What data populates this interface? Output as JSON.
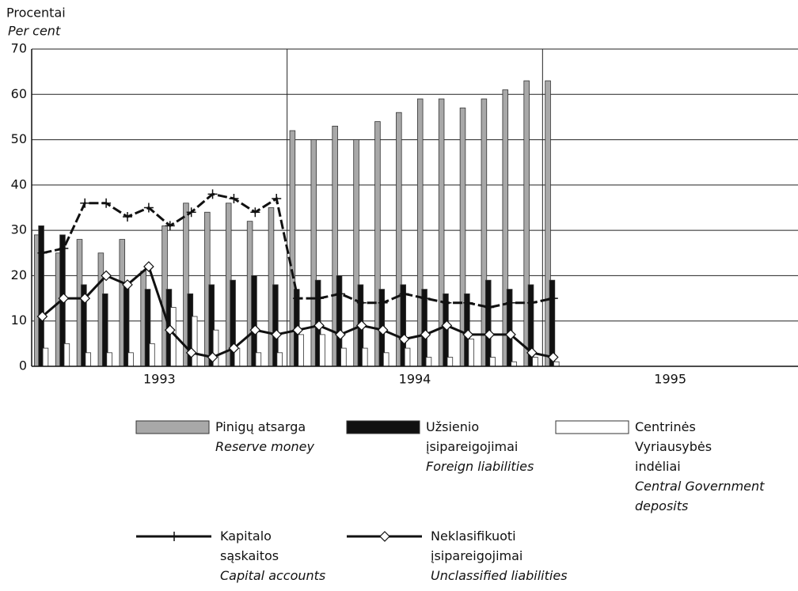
{
  "chart_data": {
    "type": "bar-line",
    "ylabel": "Procentai",
    "ylabel_en": "Per cent",
    "groups": [
      "1993",
      "1994",
      "1995"
    ],
    "categories": [
      null,
      null,
      null,
      null,
      null,
      null,
      null,
      null,
      null,
      null,
      null,
      null,
      null,
      null,
      null,
      null,
      null,
      null,
      null,
      null,
      null,
      null,
      null,
      null,
      null
    ],
    "ylim": [
      0,
      70
    ],
    "yticks": [
      0,
      10,
      20,
      30,
      40,
      50,
      60,
      70
    ],
    "grid": true,
    "series": [
      {
        "name": "Pinigų atsarga",
        "name_en": "Reserve money",
        "kind": "bar",
        "color": "#a8a8a8",
        "values": [
          29,
          25,
          28,
          25,
          28,
          21,
          31,
          36,
          34,
          36,
          32,
          35,
          52,
          50,
          53,
          50,
          54,
          56,
          59,
          59,
          57,
          59,
          61,
          63,
          63
        ]
      },
      {
        "name": "Užsienio įsipareigojimai",
        "name_en": "Foreign liabilities",
        "kind": "bar",
        "color": "#111111",
        "values": [
          31,
          29,
          18,
          16,
          18,
          17,
          17,
          16,
          18,
          19,
          20,
          18,
          17,
          19,
          20,
          18,
          17,
          18,
          17,
          16,
          16,
          19,
          17,
          18,
          19
        ]
      },
      {
        "name": "Centrinės Vyriausybės indėliai",
        "name_en": "Central Government deposits",
        "kind": "bar",
        "color": "#ffffff",
        "values": [
          4,
          5,
          3,
          3,
          3,
          5,
          13,
          11,
          8,
          4,
          3,
          3,
          7,
          7,
          4,
          4,
          3,
          4,
          2,
          2,
          6,
          2,
          1,
          2,
          1
        ]
      },
      {
        "name": "Kapitalo sąskaitos",
        "name_en": "Capital accounts",
        "kind": "line",
        "marker": "plus",
        "color": "#111111",
        "values": [
          25,
          26,
          36,
          36,
          33,
          35,
          31,
          34,
          38,
          37,
          34,
          37,
          15,
          15,
          16,
          14,
          14,
          16,
          15,
          14,
          14,
          13,
          14,
          14,
          15
        ]
      },
      {
        "name": "Neklasifikuoti įsipareigojimai",
        "name_en": "Unclassified liabilities",
        "kind": "line",
        "marker": "diamond",
        "color": "#111111",
        "values": [
          11,
          15,
          15,
          20,
          18,
          22,
          8,
          3,
          2,
          4,
          8,
          7,
          8,
          9,
          7,
          9,
          8,
          6,
          7,
          9,
          7,
          7,
          7,
          3,
          2
        ]
      }
    ]
  }
}
